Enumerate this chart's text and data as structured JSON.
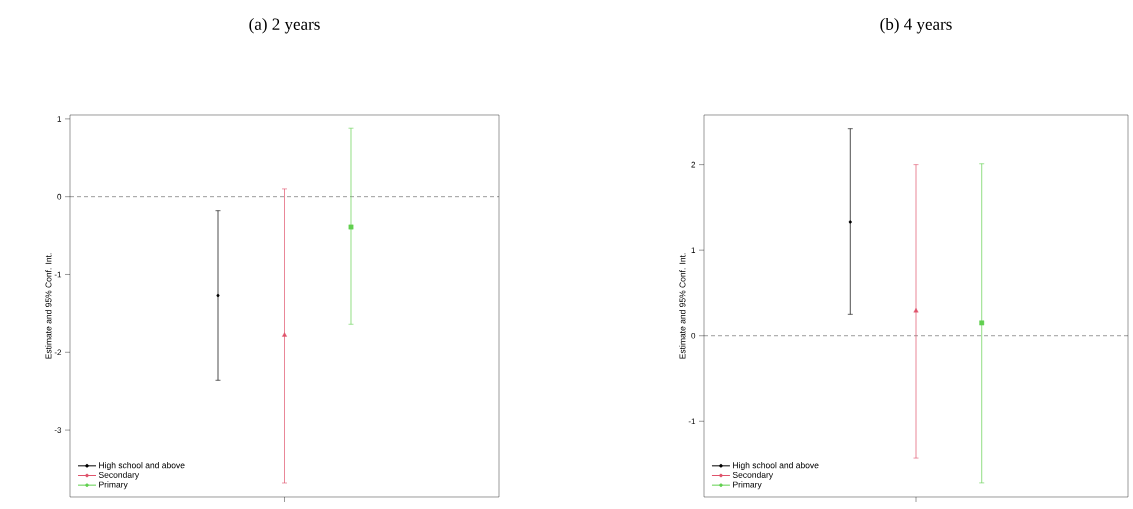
{
  "chart_data": [
    {
      "type": "scatter",
      "title": "(a) 2 years",
      "ylabel": "Estimate and 95% Conf. Int.",
      "categories": [
        null
      ],
      "ylim": [
        -3.86,
        1.05
      ],
      "yticks": [
        -3,
        -2,
        -1,
        0,
        1
      ],
      "tick_labels": "y",
      "grid": false,
      "legend": "bottom left",
      "ref_lines": [
        {
          "axis": "y",
          "value": 0,
          "line_style": "dashed",
          "color": "#000000"
        }
      ],
      "series": [
        {
          "name": "High school and above",
          "color": "#000000",
          "marker": "circle",
          "values": [
            -1.27
          ],
          "errors": [
            [
              -2.36,
              -0.18
            ]
          ]
        },
        {
          "name": "Secondary",
          "color": "#df536b",
          "marker": "triangle",
          "values": [
            -1.78
          ],
          "errors": [
            [
              -3.68,
              0.1
            ]
          ]
        },
        {
          "name": "Primary",
          "color": "#61d04f",
          "marker": "square",
          "values": [
            -0.39
          ],
          "errors": [
            [
              -1.64,
              0.88
            ]
          ]
        }
      ]
    },
    {
      "type": "scatter",
      "title": "(b) 4 years",
      "ylabel": "Estimate and 95% Conf. Int.",
      "categories": [
        null
      ],
      "ylim": [
        -1.885,
        2.58
      ],
      "yticks": [
        -1,
        0,
        1,
        2
      ],
      "tick_labels": "y",
      "grid": false,
      "legend": "bottom left",
      "ref_lines": [
        {
          "axis": "y",
          "value": 0,
          "line_style": "dashed",
          "color": "#000000"
        }
      ],
      "series": [
        {
          "name": "High school and above",
          "color": "#000000",
          "marker": "circle",
          "values": [
            1.33
          ],
          "errors": [
            [
              0.25,
              2.42
            ]
          ]
        },
        {
          "name": "Secondary",
          "color": "#df536b",
          "marker": "triangle",
          "values": [
            0.29
          ],
          "errors": [
            [
              -1.43,
              2.0
            ]
          ]
        },
        {
          "name": "Primary",
          "color": "#61d04f",
          "marker": "square",
          "values": [
            0.15
          ],
          "errors": [
            [
              -1.72,
              2.01
            ]
          ]
        }
      ]
    }
  ]
}
